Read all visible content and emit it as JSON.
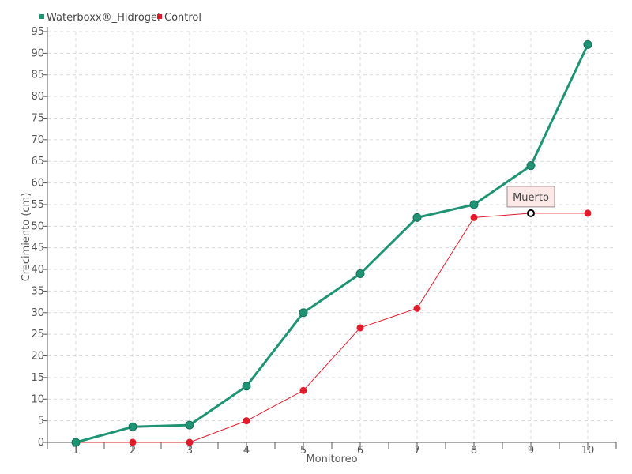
{
  "chart_data": {
    "type": "line",
    "title": "",
    "xlabel": "Monitoreo",
    "ylabel": "Crecimiento (cm)",
    "x": [
      1,
      2,
      3,
      4,
      5,
      6,
      7,
      8,
      9,
      10
    ],
    "ylim": [
      0,
      95
    ],
    "yticks": [
      0,
      5,
      10,
      15,
      20,
      25,
      30,
      35,
      40,
      45,
      50,
      55,
      60,
      65,
      70,
      75,
      80,
      85,
      90,
      95
    ],
    "grid": true,
    "legend_position": "top-left",
    "series": [
      {
        "name": "Waterboxx®_Hidrogel",
        "color": "#1f9474",
        "values": [
          0,
          3.6,
          4,
          13,
          30,
          39,
          52,
          55,
          64,
          92
        ]
      },
      {
        "name": "Control",
        "color": "#e21b2c",
        "values": [
          0,
          0,
          0,
          5,
          12,
          26.5,
          31,
          52,
          53,
          53
        ]
      }
    ],
    "annotation": {
      "text": "Muerto",
      "series": "Control",
      "x": 9,
      "y": 53
    }
  }
}
